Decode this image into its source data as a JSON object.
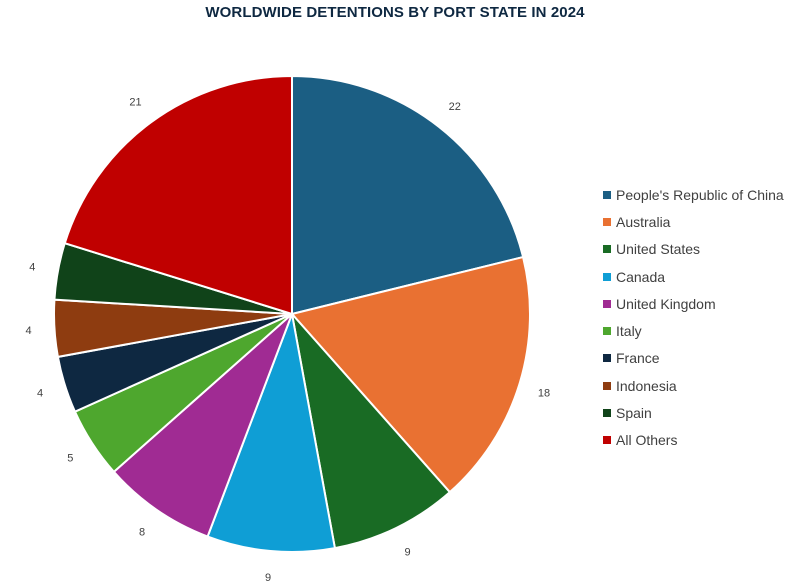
{
  "chart_data": {
    "type": "pie",
    "title": "WORLDWIDE DETENTIONS BY PORT STATE IN 2024",
    "categories": [
      "People's Republic of China",
      "Australia",
      "United States",
      "Canada",
      "United Kingdom",
      "Italy",
      "France",
      "Indonesia",
      "Spain",
      "All Others"
    ],
    "values": [
      22,
      18,
      9,
      9,
      8,
      5,
      4,
      4,
      4,
      21
    ],
    "colors": [
      "#1b5e83",
      "#e97132",
      "#196b24",
      "#0f9ed5",
      "#a02b93",
      "#4ea72e",
      "#0e2841",
      "#8e3c10",
      "#104319",
      "#c00000"
    ],
    "legend_position": "right",
    "data_labels": true
  }
}
